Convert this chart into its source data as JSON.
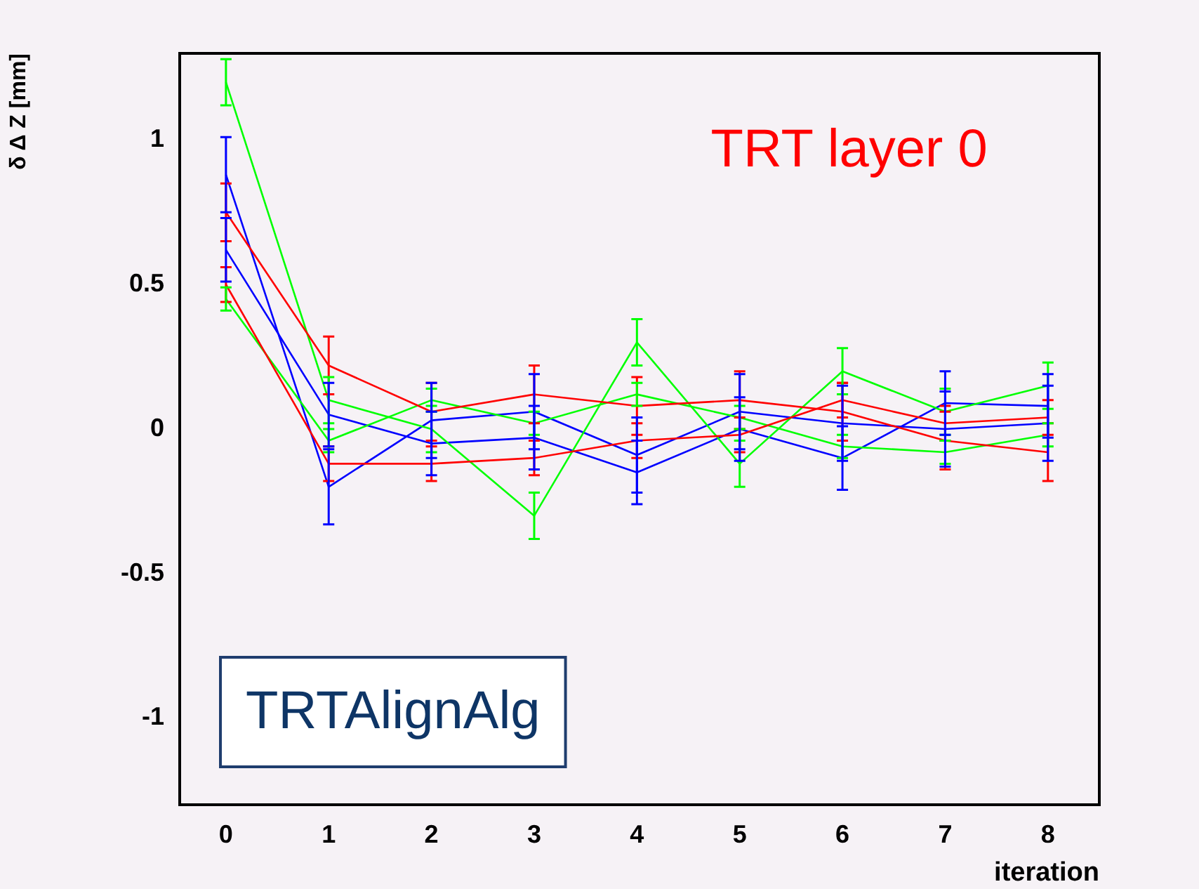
{
  "chart_data": {
    "type": "line",
    "xlabel": "iteration",
    "ylabel": "δ Δ Z [mm]",
    "annotations": [
      "TRT layer 0",
      "TRTAlignAlg"
    ],
    "x": [
      0,
      1,
      2,
      3,
      4,
      5,
      6,
      7,
      8
    ],
    "xlim": [
      -0.45,
      8.5
    ],
    "xticks": [
      0,
      1,
      2,
      3,
      4,
      5,
      6,
      7,
      8
    ],
    "ylim": [
      -1.3,
      1.3
    ],
    "yticks": [
      -1,
      -0.5,
      0,
      0.5,
      1
    ],
    "grid": false,
    "legend": false,
    "marker": "none",
    "line_style": "solid",
    "series": [
      {
        "color": "#ff0000",
        "values": [
          0.75,
          0.22,
          0.06,
          0.12,
          0.08,
          0.1,
          0.06,
          -0.04,
          -0.08
        ],
        "errors": [
          0.1,
          0.1,
          0.1,
          0.1,
          0.1,
          0.1,
          0.1,
          0.1,
          0.1
        ]
      },
      {
        "color": "#ff0000",
        "values": [
          0.5,
          -0.12,
          -0.12,
          -0.1,
          -0.04,
          -0.02,
          0.1,
          0.02,
          0.04
        ],
        "errors": [
          0.06,
          0.06,
          0.06,
          0.06,
          0.06,
          0.06,
          0.06,
          0.06,
          0.06
        ]
      },
      {
        "color": "#00ff00",
        "values": [
          1.2,
          0.1,
          0,
          -0.3,
          0.3,
          -0.12,
          0.2,
          0.06,
          0.15
        ],
        "errors": [
          0.08,
          0.08,
          0.08,
          0.08,
          0.08,
          0.08,
          0.08,
          0.08,
          0.08
        ]
      },
      {
        "color": "#00ff00",
        "values": [
          0.45,
          -0.04,
          0.1,
          0.02,
          0.12,
          0.04,
          -0.06,
          -0.08,
          -0.02
        ],
        "errors": [
          0.04,
          0.04,
          0.04,
          0.04,
          0.04,
          0.04,
          0.04,
          0.04,
          0.04
        ]
      },
      {
        "color": "#0000ff",
        "values": [
          0.88,
          -0.2,
          0.03,
          0.06,
          -0.09,
          0.06,
          0.02,
          0,
          0.02
        ],
        "errors": [
          0.13,
          0.13,
          0.13,
          0.13,
          0.13,
          0.13,
          0.13,
          0.13,
          0.13
        ]
      },
      {
        "color": "#0000ff",
        "values": [
          0.62,
          0.05,
          -0.05,
          -0.03,
          -0.15,
          0,
          -0.1,
          0.09,
          0.08
        ],
        "errors": [
          0.11,
          0.11,
          0.11,
          0.11,
          0.11,
          0.11,
          0.11,
          0.11,
          0.11
        ]
      }
    ]
  }
}
